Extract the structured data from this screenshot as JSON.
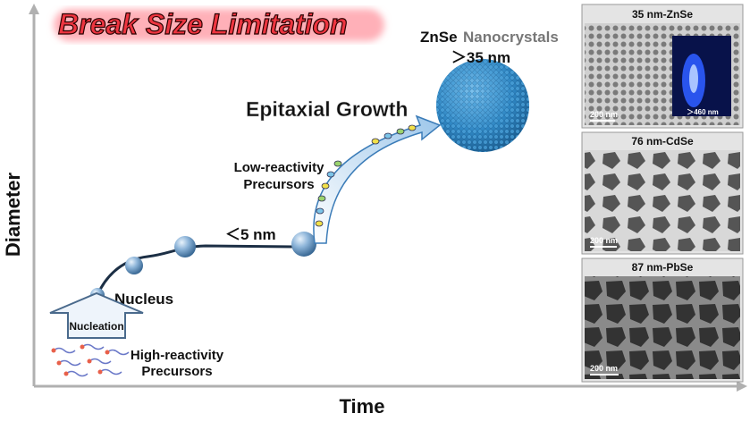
{
  "title": "Break Size Limitation",
  "axes": {
    "y_label": "Diameter",
    "x_label": "Time"
  },
  "product": {
    "material": "ZnSe",
    "kind": "Nanocrystals",
    "size": "＞35 nm"
  },
  "stages": {
    "growth": "Epitaxial Growth",
    "low_precursors": [
      "Low-reactivity",
      "Precursors"
    ],
    "small_size": "＜5 nm",
    "nucleus": "Nucleus",
    "nucleation": "Nucleation",
    "high_precursors": [
      "High-reactivity",
      "Precursors"
    ]
  },
  "panels": [
    {
      "title": "35 nm-ZnSe",
      "scale": "200 nm",
      "emission": "＞460 nm"
    },
    {
      "title": "76 nm-CdSe",
      "scale": "200 nm"
    },
    {
      "title": "87 nm-PbSe",
      "scale": "200 nm"
    }
  ]
}
